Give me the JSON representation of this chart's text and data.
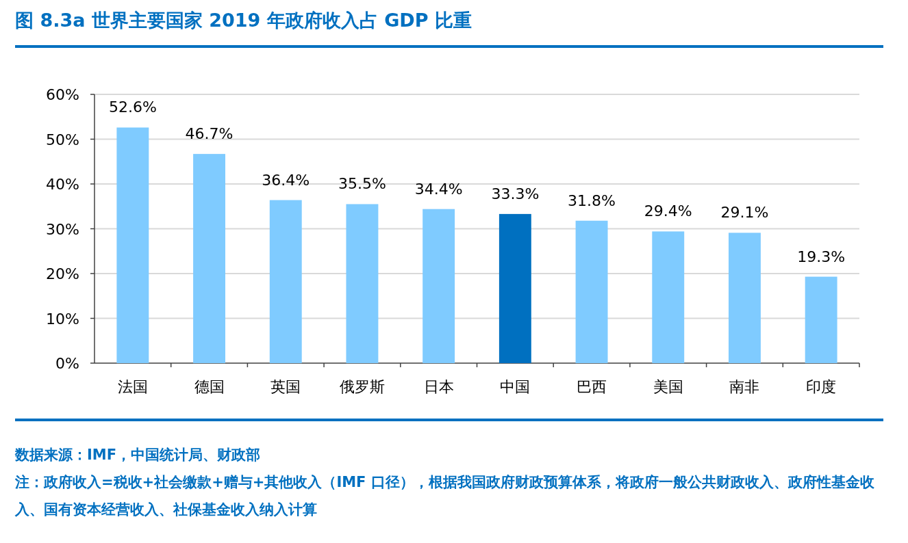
{
  "chart_data": {
    "type": "bar",
    "title": "图 8.3a  世界主要国家 2019 年政府收入占 GDP 比重",
    "categories": [
      "法国",
      "德国",
      "英国",
      "俄罗斯",
      "日本",
      "中国",
      "巴西",
      "美国",
      "南非",
      "印度"
    ],
    "values": [
      52.6,
      46.7,
      36.4,
      35.5,
      34.4,
      33.3,
      31.8,
      29.4,
      29.1,
      19.3
    ],
    "value_labels": [
      "52.6%",
      "46.7%",
      "36.4%",
      "35.5%",
      "34.4%",
      "33.3%",
      "31.8%",
      "29.4%",
      "29.1%",
      "19.3%"
    ],
    "colors": [
      "#7fcbff",
      "#7fcbff",
      "#7fcbff",
      "#7fcbff",
      "#7fcbff",
      "#0070c0",
      "#7fcbff",
      "#7fcbff",
      "#7fcbff",
      "#7fcbff"
    ],
    "ylim": [
      0,
      60
    ],
    "yticks": [
      {
        "value": 0,
        "label": "0%"
      },
      {
        "value": 10,
        "label": "10%"
      },
      {
        "value": 20,
        "label": "20%"
      },
      {
        "value": 30,
        "label": "30%"
      },
      {
        "value": 40,
        "label": "40%"
      },
      {
        "value": 50,
        "label": "50%"
      },
      {
        "value": 60,
        "label": "60%"
      }
    ],
    "grid": "y",
    "annotations": [
      "数据来源：IMF，中国统计局、财政部",
      "注：政府收入=税收+社会缴款+赠与+其他收入（IMF 口径），根据我国政府财政预算体系，将政府一般公共财政收入、政府性基金收入、国有资本经营收入、社保基金收入纳入计算"
    ]
  }
}
